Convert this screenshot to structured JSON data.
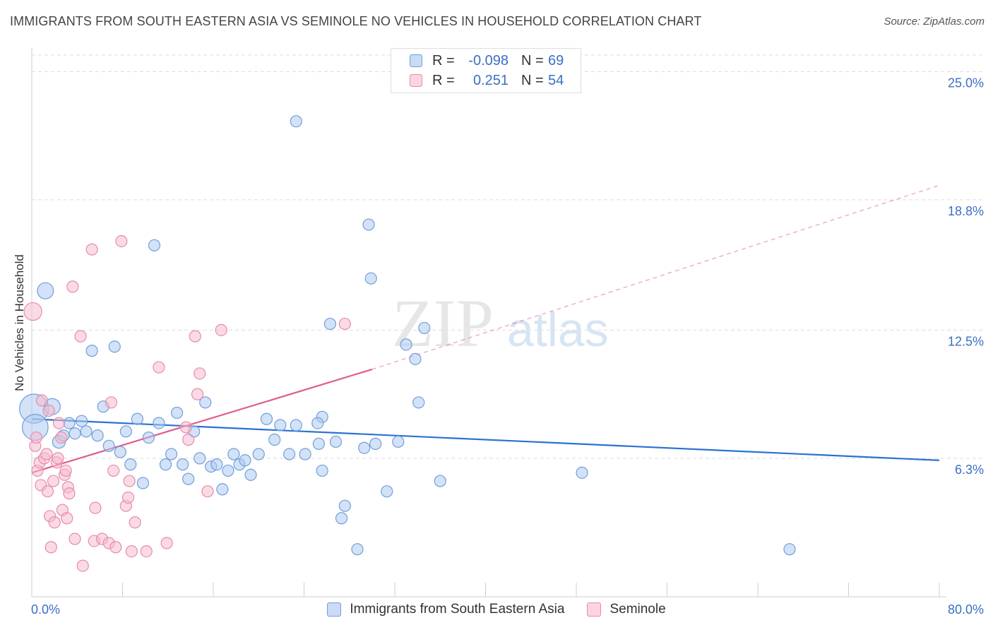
{
  "title": "IMMIGRANTS FROM SOUTH EASTERN ASIA VS SEMINOLE NO VEHICLES IN HOUSEHOLD CORRELATION CHART",
  "source": "Source: ZipAtlas.com",
  "watermark": {
    "zip": "ZIP",
    "atlas": "atlas"
  },
  "legend": {
    "rows": [
      {
        "r_label": "R =",
        "r_value": "-0.098",
        "n_label": "N =",
        "n_value": "69"
      },
      {
        "r_label": "R =",
        "r_value": "0.251",
        "n_label": "N =",
        "n_value": "54"
      }
    ]
  },
  "colors": {
    "blue_fill": "#aecbf0",
    "blue_stroke": "#6f9fdc",
    "blue_line": "#2a72d1",
    "pink_fill": "#f6bcd0",
    "pink_stroke": "#e98aab",
    "pink_line": "#e05c8c",
    "axis_text": "#3a6fc4"
  },
  "chart_data": {
    "type": "scatter",
    "title": "IMMIGRANTS FROM SOUTH EASTERN ASIA VS SEMINOLE NO VEHICLES IN HOUSEHOLD CORRELATION CHART",
    "xlabel": "",
    "ylabel": "No Vehicles in Household",
    "xlim": [
      0,
      80
    ],
    "ylim": [
      -0.4,
      25.8
    ],
    "x_tick_labels": [
      "0.0%",
      "80.0%"
    ],
    "y_ticks": [
      6.3,
      12.5,
      18.8,
      25.0
    ],
    "y_tick_labels": [
      "6.3%",
      "12.5%",
      "18.8%",
      "25.0%"
    ],
    "grid": "horizontal dashed",
    "legend_position": "top-center",
    "series": [
      {
        "name": "Immigrants from South Eastern Asia",
        "color": "#aecbf0",
        "points": [
          [
            0.2,
            8.7,
            1.8
          ],
          [
            0.3,
            7.8,
            1.6
          ],
          [
            1.2,
            14.4,
            1.0
          ],
          [
            1.8,
            8.8,
            1.0
          ],
          [
            2.4,
            7.1,
            0.8
          ],
          [
            2.8,
            7.4,
            0.7
          ],
          [
            3.3,
            8.0,
            0.7
          ],
          [
            3.8,
            7.5,
            0.7
          ],
          [
            4.4,
            8.1,
            0.7
          ],
          [
            4.8,
            7.6,
            0.7
          ],
          [
            5.3,
            11.5,
            0.7
          ],
          [
            5.8,
            7.4,
            0.7
          ],
          [
            6.3,
            8.8,
            0.7
          ],
          [
            6.8,
            6.9,
            0.7
          ],
          [
            7.3,
            11.7,
            0.7
          ],
          [
            7.8,
            6.6,
            0.7
          ],
          [
            8.3,
            7.6,
            0.7
          ],
          [
            8.7,
            6.0,
            0.7
          ],
          [
            9.3,
            8.2,
            0.7
          ],
          [
            9.8,
            5.1,
            0.7
          ],
          [
            10.3,
            7.3,
            0.7
          ],
          [
            10.8,
            16.6,
            0.7
          ],
          [
            11.2,
            8.0,
            0.7
          ],
          [
            11.8,
            6.0,
            0.7
          ],
          [
            12.3,
            6.5,
            0.7
          ],
          [
            12.8,
            8.5,
            0.7
          ],
          [
            13.3,
            6.0,
            0.7
          ],
          [
            13.8,
            5.3,
            0.7
          ],
          [
            14.3,
            7.6,
            0.7
          ],
          [
            14.8,
            6.3,
            0.7
          ],
          [
            15.3,
            9.0,
            0.7
          ],
          [
            15.8,
            5.9,
            0.7
          ],
          [
            16.3,
            6.0,
            0.7
          ],
          [
            16.8,
            4.8,
            0.7
          ],
          [
            17.3,
            5.7,
            0.7
          ],
          [
            17.8,
            6.5,
            0.7
          ],
          [
            18.3,
            6.0,
            0.7
          ],
          [
            18.8,
            6.2,
            0.7
          ],
          [
            19.3,
            5.5,
            0.7
          ],
          [
            20.0,
            6.5,
            0.7
          ],
          [
            20.7,
            8.2,
            0.7
          ],
          [
            21.4,
            7.2,
            0.7
          ],
          [
            21.9,
            7.9,
            0.7
          ],
          [
            22.7,
            6.5,
            0.7
          ],
          [
            23.3,
            7.9,
            0.7
          ],
          [
            24.1,
            6.5,
            0.7
          ],
          [
            25.3,
            7.0,
            0.7
          ],
          [
            25.6,
            8.3,
            0.7
          ],
          [
            25.2,
            8.0,
            0.7
          ],
          [
            25.6,
            5.7,
            0.7
          ],
          [
            26.3,
            12.8,
            0.7
          ],
          [
            26.8,
            7.1,
            0.7
          ],
          [
            27.3,
            3.4,
            0.7
          ],
          [
            27.6,
            4.0,
            0.7
          ],
          [
            23.3,
            22.6,
            0.7
          ],
          [
            29.3,
            6.8,
            0.7
          ],
          [
            29.7,
            17.6,
            0.7
          ],
          [
            29.9,
            15.0,
            0.7
          ],
          [
            30.3,
            7.0,
            0.7
          ],
          [
            31.3,
            4.7,
            0.7
          ],
          [
            32.3,
            7.1,
            0.7
          ],
          [
            33.0,
            11.8,
            0.7
          ],
          [
            33.8,
            11.1,
            0.7
          ],
          [
            34.1,
            9.0,
            0.7
          ],
          [
            34.6,
            12.6,
            0.7
          ],
          [
            36.0,
            5.2,
            0.7
          ],
          [
            28.7,
            1.9,
            0.7
          ],
          [
            48.5,
            5.6,
            0.7
          ],
          [
            66.8,
            1.9,
            0.7
          ]
        ]
      },
      {
        "name": "Seminole",
        "color": "#f6bcd0",
        "points": [
          [
            0.1,
            13.4,
            1.1
          ],
          [
            0.3,
            6.9,
            0.7
          ],
          [
            0.4,
            7.3,
            0.7
          ],
          [
            0.5,
            5.7,
            0.7
          ],
          [
            0.7,
            6.1,
            0.7
          ],
          [
            0.8,
            5.0,
            0.7
          ],
          [
            0.9,
            9.1,
            0.7
          ],
          [
            1.1,
            6.3,
            0.7
          ],
          [
            1.3,
            6.5,
            0.7
          ],
          [
            1.4,
            4.7,
            0.7
          ],
          [
            1.6,
            3.5,
            0.7
          ],
          [
            1.7,
            2.0,
            0.7
          ],
          [
            1.9,
            5.2,
            0.7
          ],
          [
            2.0,
            3.2,
            0.7
          ],
          [
            2.2,
            6.1,
            0.7
          ],
          [
            2.3,
            6.3,
            0.7
          ],
          [
            2.4,
            8.0,
            0.7
          ],
          [
            2.6,
            7.3,
            0.7
          ],
          [
            2.7,
            3.8,
            0.7
          ],
          [
            2.9,
            5.5,
            0.7
          ],
          [
            3.0,
            5.7,
            0.7
          ],
          [
            3.1,
            3.4,
            0.7
          ],
          [
            3.2,
            4.9,
            0.7
          ],
          [
            3.3,
            4.6,
            0.7
          ],
          [
            3.6,
            14.6,
            0.7
          ],
          [
            4.3,
            12.2,
            0.7
          ],
          [
            4.5,
            1.1,
            0.7
          ],
          [
            5.3,
            16.4,
            0.7
          ],
          [
            5.5,
            2.3,
            0.7
          ],
          [
            5.6,
            3.9,
            0.7
          ],
          [
            6.2,
            2.4,
            0.7
          ],
          [
            6.8,
            2.2,
            0.7
          ],
          [
            7.0,
            9.0,
            0.7
          ],
          [
            7.2,
            5.7,
            0.7
          ],
          [
            7.9,
            16.8,
            0.7
          ],
          [
            8.3,
            4.0,
            0.7
          ],
          [
            8.5,
            4.4,
            0.7
          ],
          [
            8.6,
            5.2,
            0.7
          ],
          [
            8.8,
            1.8,
            0.7
          ],
          [
            9.1,
            3.2,
            0.7
          ],
          [
            10.1,
            1.8,
            0.7
          ],
          [
            11.2,
            10.7,
            0.7
          ],
          [
            11.9,
            2.2,
            0.7
          ],
          [
            13.6,
            7.8,
            0.7
          ],
          [
            13.8,
            7.2,
            0.7
          ],
          [
            14.4,
            12.2,
            0.7
          ],
          [
            14.6,
            9.4,
            0.7
          ],
          [
            14.8,
            10.4,
            0.7
          ],
          [
            15.5,
            4.7,
            0.7
          ],
          [
            16.7,
            12.5,
            0.7
          ],
          [
            27.6,
            12.8,
            0.7
          ],
          [
            1.5,
            8.6,
            0.7
          ],
          [
            3.8,
            2.4,
            0.7
          ],
          [
            7.4,
            2.0,
            0.7
          ]
        ]
      }
    ],
    "trendlines": [
      {
        "series": "Immigrants from South Eastern Asia",
        "x": [
          0,
          80
        ],
        "y": [
          8.2,
          6.2
        ]
      },
      {
        "series": "Seminole",
        "x": [
          0,
          30
        ],
        "y": [
          5.6,
          10.6
        ],
        "extension_x": [
          30,
          80
        ],
        "extension_y": [
          10.6,
          19.5
        ]
      }
    ]
  },
  "y_axis_label": "No Vehicles in Household",
  "x_axis": {
    "min_label": "0.0%",
    "max_label": "80.0%"
  },
  "bottom_legend": {
    "items": [
      "Immigrants from South Eastern Asia",
      "Seminole"
    ]
  }
}
